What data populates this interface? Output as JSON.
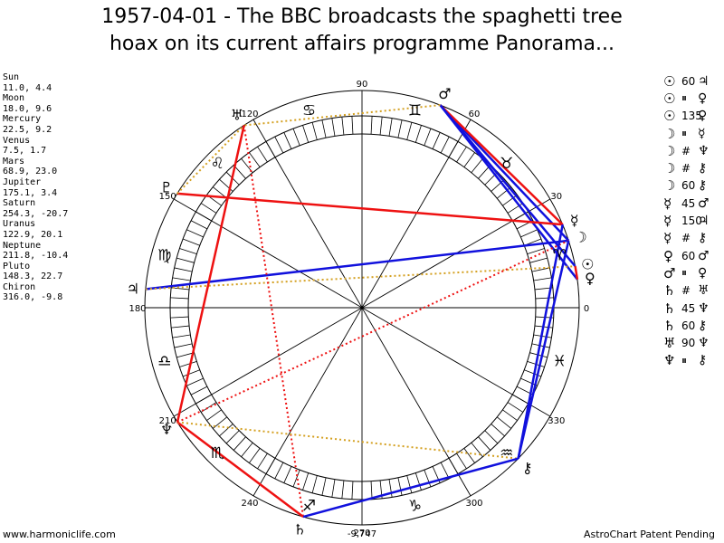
{
  "title": {
    "line1": "1957-04-01 - The BBC broadcasts the spaghetti tree",
    "line2": "hoax on its current affairs programme Panorama..."
  },
  "planets": [
    {
      "name": "Sun",
      "glyph": "☉",
      "coords": "11.0, 4.4",
      "lon": 11.0,
      "dec": 4.4
    },
    {
      "name": "Moon",
      "glyph": "☽",
      "coords": "18.0, 9.6",
      "lon": 18.0,
      "dec": 9.6
    },
    {
      "name": "Mercury",
      "glyph": "☿",
      "coords": "22.5, 9.2",
      "lon": 22.5,
      "dec": 9.2
    },
    {
      "name": "Venus",
      "glyph": "♀",
      "coords": "7.5, 1.7",
      "lon": 7.5,
      "dec": 1.7
    },
    {
      "name": "Mars",
      "glyph": "♂",
      "coords": "68.9, 23.0",
      "lon": 68.9,
      "dec": 23.0
    },
    {
      "name": "Jupiter",
      "glyph": "♃",
      "coords": "175.1, 3.4",
      "lon": 175.1,
      "dec": 3.4
    },
    {
      "name": "Saturn",
      "glyph": "♄",
      "coords": "254.3, -20.7",
      "lon": 254.3,
      "dec": -20.7
    },
    {
      "name": "Uranus",
      "glyph": "♅",
      "coords": "122.9, 20.1",
      "lon": 122.9,
      "dec": 20.1
    },
    {
      "name": "Neptune",
      "glyph": "♆",
      "coords": "211.8, -10.4",
      "lon": 211.8,
      "dec": -10.4
    },
    {
      "name": "Pluto",
      "glyph": "♇",
      "coords": "148.3, 22.7",
      "lon": 148.3,
      "dec": 22.7
    },
    {
      "name": "Chiron",
      "glyph": "⚷",
      "coords": "316.0, -9.8",
      "lon": 316.0,
      "dec": -9.8
    }
  ],
  "node_glyph": "☊",
  "aspects": [
    {
      "p1": "☉",
      "aspect": "60",
      "p2": "♃"
    },
    {
      "p1": "☉",
      "aspect": "⏸",
      "p2": "♀"
    },
    {
      "p1": "☉",
      "aspect": "135",
      "p2": "♀"
    },
    {
      "p1": "☽",
      "aspect": "⏸",
      "p2": "☿"
    },
    {
      "p1": "☽",
      "aspect": "#",
      "p2": "♆"
    },
    {
      "p1": "☽",
      "aspect": "#",
      "p2": "⚷"
    },
    {
      "p1": "☽",
      "aspect": "60",
      "p2": "⚷"
    },
    {
      "p1": "☿",
      "aspect": "45",
      "p2": "♂"
    },
    {
      "p1": "☿",
      "aspect": "150",
      "p2": "♃"
    },
    {
      "p1": "☿",
      "aspect": "#",
      "p2": "⚷"
    },
    {
      "p1": "♀",
      "aspect": "60",
      "p2": "♂"
    },
    {
      "p1": "♂",
      "aspect": "⏸",
      "p2": "♀"
    },
    {
      "p1": "♄",
      "aspect": "#",
      "p2": "♅"
    },
    {
      "p1": "♄",
      "aspect": "45",
      "p2": "♆"
    },
    {
      "p1": "♄",
      "aspect": "60",
      "p2": "⚷"
    },
    {
      "p1": "♅",
      "aspect": "90",
      "p2": "♆"
    },
    {
      "p1": "♆",
      "aspect": "⏸",
      "p2": "⚷"
    }
  ],
  "zodiac": [
    "♈",
    "♉",
    "♊",
    "♋",
    "♌",
    "♍",
    "♎",
    "♏",
    "♐",
    "♑",
    "♒",
    "♓"
  ],
  "degree_labels": [
    "0",
    "30",
    "60",
    "90",
    "120",
    "150",
    "180",
    "210",
    "240",
    "270",
    "300",
    "330"
  ],
  "bottom_number": "-9,747",
  "footer": {
    "left": "www.harmoniclife.com",
    "right": "AstroChart Patent Pending"
  },
  "colors": {
    "aspect_red": "#ee1111",
    "aspect_blue": "#1111dd",
    "aspect_gold": "#d4a020",
    "aspect_red_dotted": "#dd1111"
  },
  "aspect_lines": [
    {
      "from": "Mars",
      "to": "Moon",
      "color": "blue",
      "style": "solid"
    },
    {
      "from": "Mars",
      "to": "Mercury",
      "color": "red",
      "style": "solid"
    },
    {
      "from": "Mars",
      "to": "Sun",
      "color": "blue",
      "style": "solid"
    },
    {
      "from": "Mars",
      "to": "Venus",
      "color": "blue",
      "style": "solid"
    },
    {
      "from": "Mars",
      "to": "Uranus",
      "color": "gold",
      "style": "dotted"
    },
    {
      "from": "Pluto",
      "to": "Mercury",
      "color": "red",
      "style": "solid"
    },
    {
      "from": "Pluto",
      "to": "Uranus",
      "color": "gold",
      "style": "dotted"
    },
    {
      "from": "Jupiter",
      "to": "Moon",
      "color": "blue",
      "style": "solid"
    },
    {
      "from": "Jupiter",
      "to": "Sun",
      "color": "gold",
      "style": "dotted"
    },
    {
      "from": "Uranus",
      "to": "Neptune",
      "color": "red",
      "style": "solid"
    },
    {
      "from": "Uranus",
      "to": "Saturn",
      "color": "red",
      "style": "dotted"
    },
    {
      "from": "Neptune",
      "to": "Saturn",
      "color": "red",
      "style": "solid"
    },
    {
      "from": "Neptune",
      "to": "Chiron",
      "color": "gold",
      "style": "dotted"
    },
    {
      "from": "Neptune",
      "to": "Moon",
      "color": "red",
      "style": "dotted"
    },
    {
      "from": "Saturn",
      "to": "Chiron",
      "color": "blue",
      "style": "solid"
    },
    {
      "from": "Chiron",
      "to": "Moon",
      "color": "blue",
      "style": "solid"
    },
    {
      "from": "Chiron",
      "to": "Mercury",
      "color": "blue",
      "style": "solid"
    },
    {
      "from": "Sun",
      "to": "Venus",
      "color": "red",
      "style": "solid"
    }
  ]
}
